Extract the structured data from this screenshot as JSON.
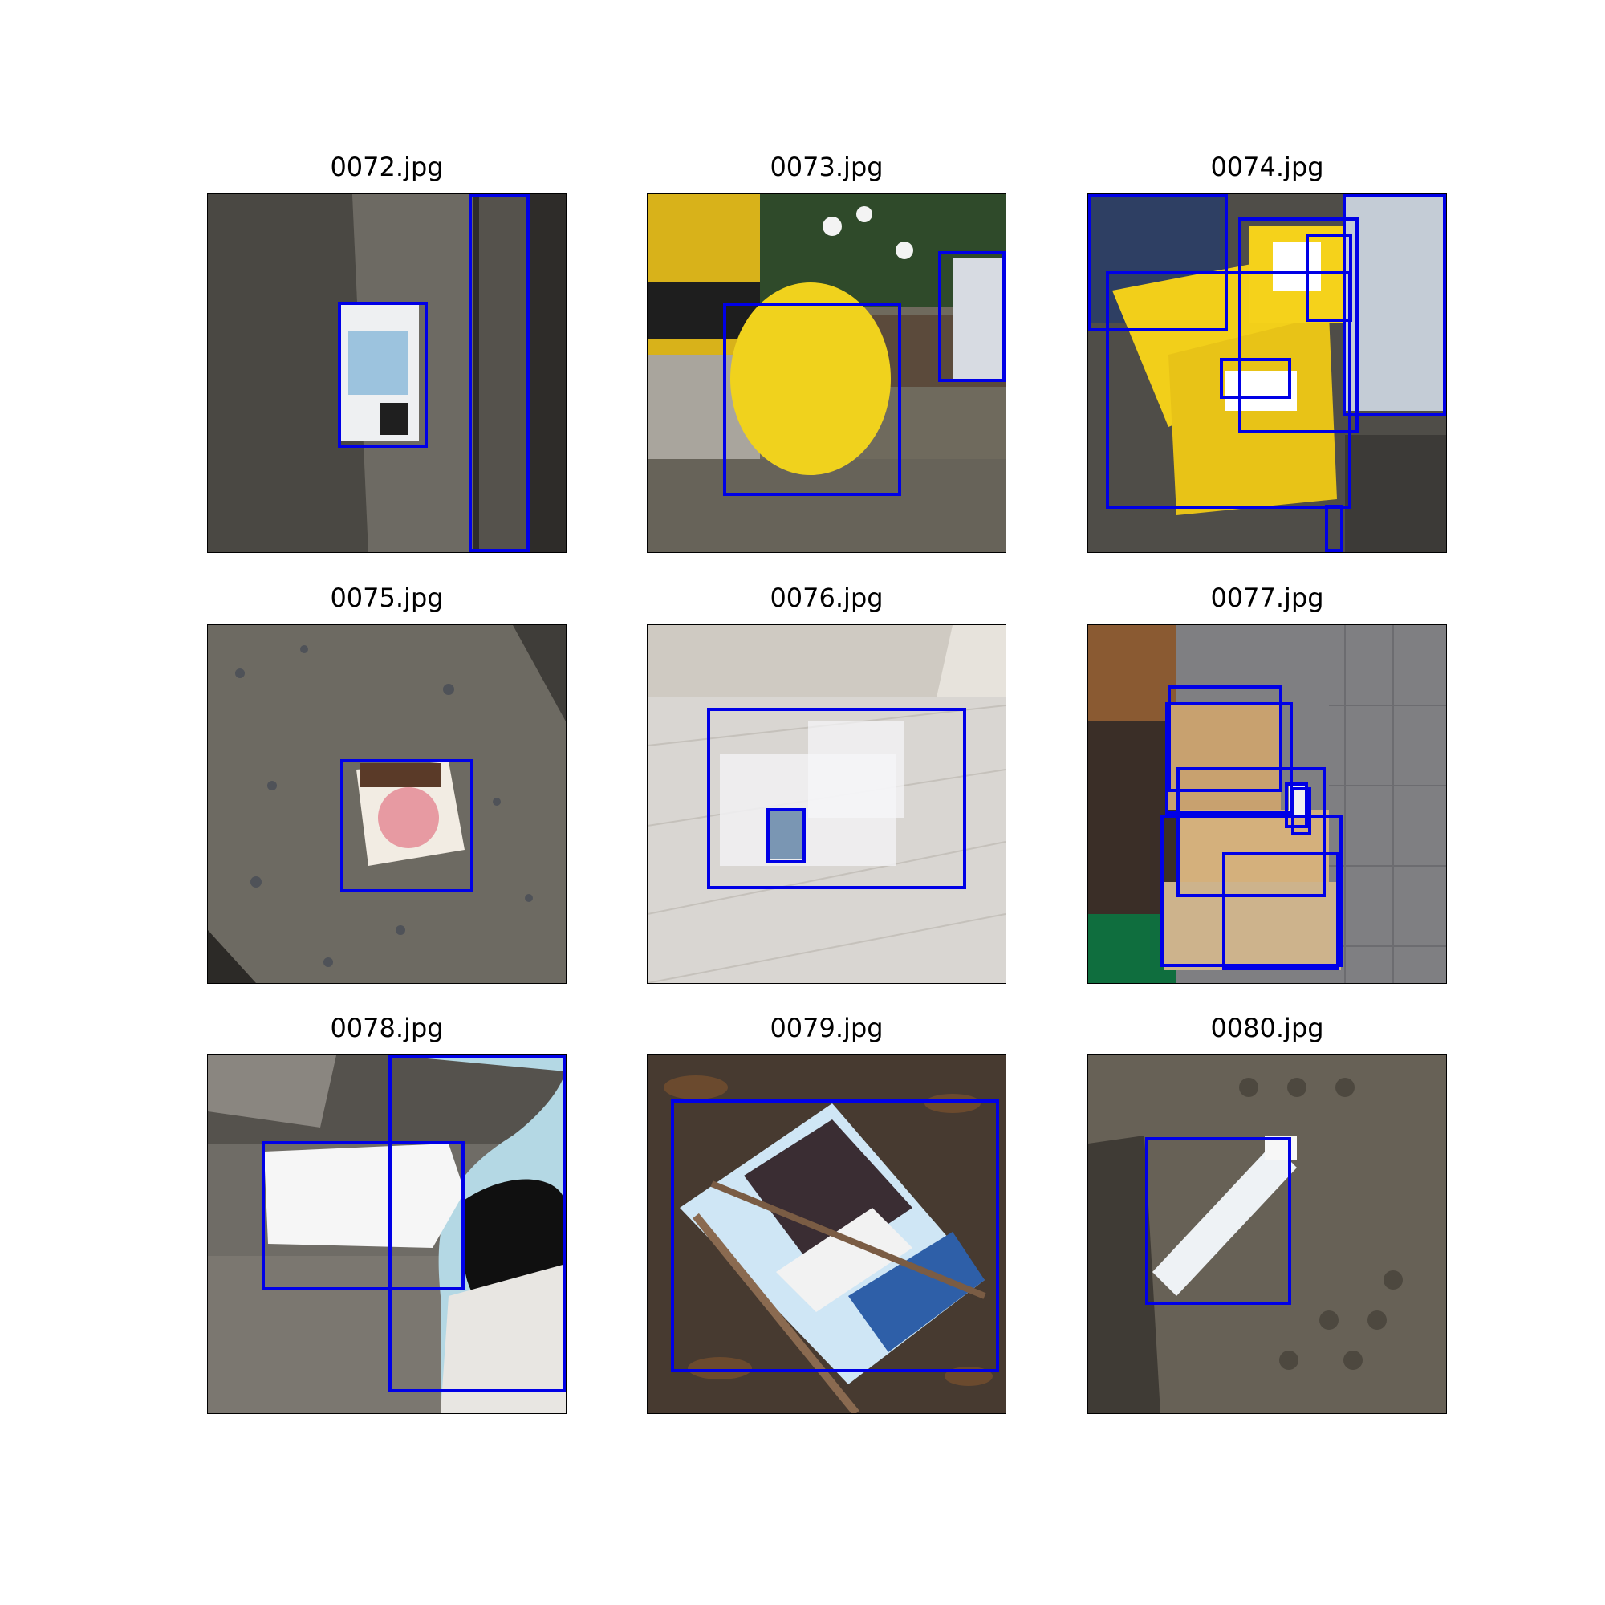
{
  "panels": [
    {
      "title": "0072.jpg",
      "colors": {
        "bg": "#5b5852",
        "accent": "#f2f2ef"
      }
    },
    {
      "title": "0073.jpg",
      "colors": {
        "bg": "#6f6a5d",
        "accent": "#f0d21d"
      }
    },
    {
      "title": "0074.jpg",
      "colors": {
        "bg": "#4f4d48",
        "accent": "#f2cf1a"
      }
    },
    {
      "title": "0075.jpg",
      "colors": {
        "bg": "#6d6a62",
        "accent": "#e79aa2"
      }
    },
    {
      "title": "0076.jpg",
      "colors": {
        "bg": "#d9d6d2",
        "accent": "#f7f7fa"
      }
    },
    {
      "title": "0077.jpg",
      "colors": {
        "bg": "#7f7f82",
        "accent": "#c8a16f"
      }
    },
    {
      "title": "0078.jpg",
      "colors": {
        "bg": "#6f6c66",
        "accent": "#f6f6f6"
      }
    },
    {
      "title": "0079.jpg",
      "colors": {
        "bg": "#473a30",
        "accent": "#cfe6f5"
      }
    },
    {
      "title": "0080.jpg",
      "colors": {
        "bg": "#5f5a50",
        "accent": "#eef2f5"
      }
    }
  ],
  "box_color": "#0000e6"
}
